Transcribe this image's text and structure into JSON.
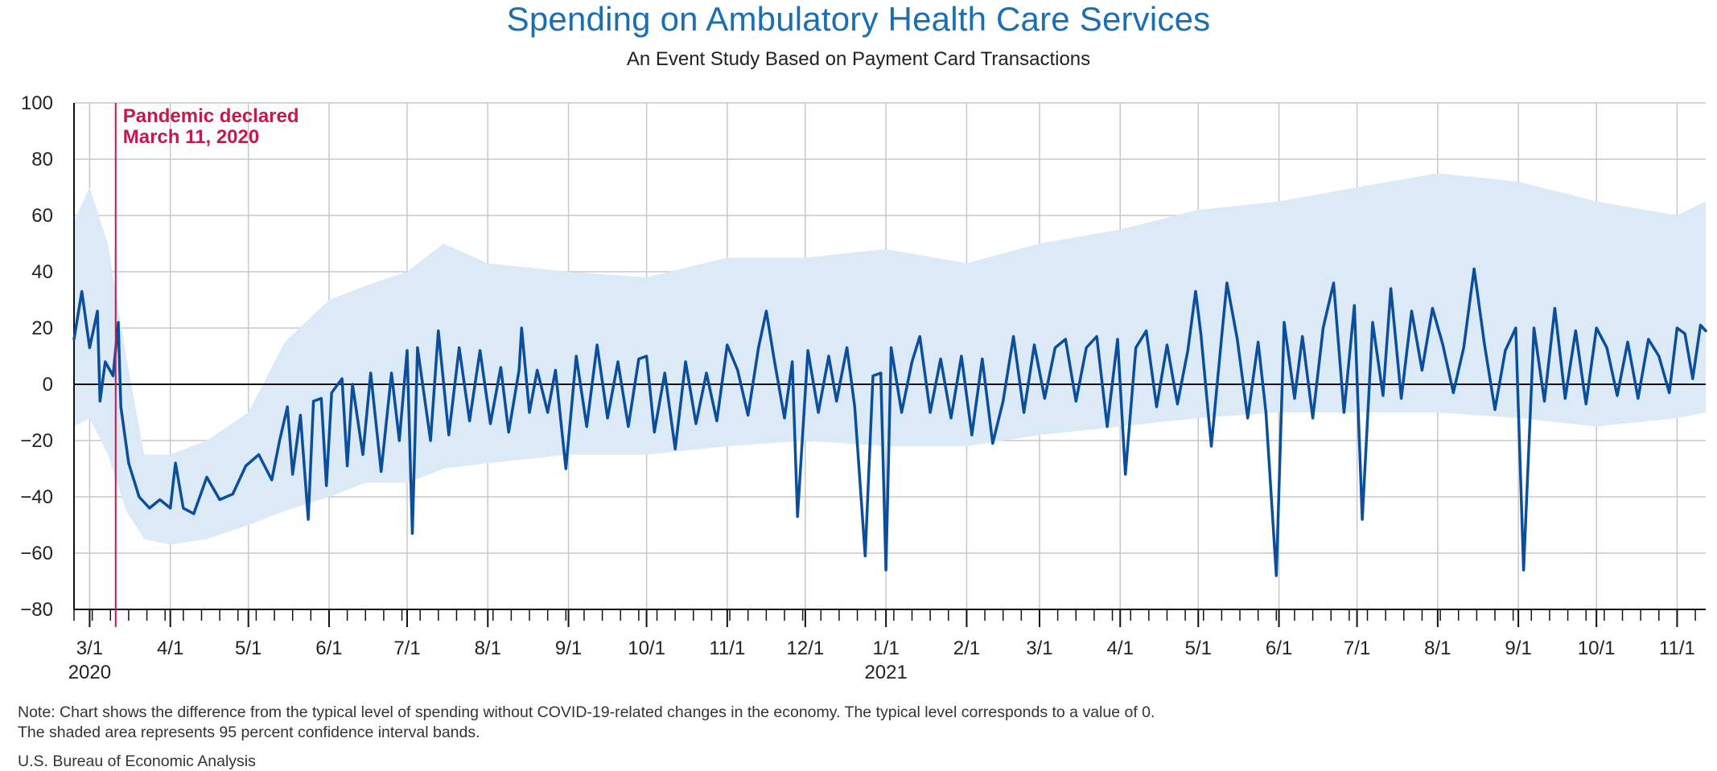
{
  "title": "Spending on Ambulatory Health Care Services",
  "subtitle": "An Event Study Based on Payment Card Transactions",
  "note_line1": "Note: Chart shows the difference from the typical level of spending without COVID-19-related changes in the economy. The typical level corresponds to a value of 0.",
  "note_line2": "The shaded area represents 95 percent confidence interval bands.",
  "source": "U.S. Bureau of Economic Analysis",
  "colors": {
    "title": "#1a6fb4",
    "line": "#0b4f9c",
    "band": "#dce9f7",
    "annotation": "#c8174a",
    "grid": "#c7c7c7"
  },
  "chart_data": {
    "type": "line",
    "title": "Spending on Ambulatory Health Care Services",
    "subtitle": "An Event Study Based on Payment Card Transactions",
    "xlabel": "",
    "ylabel": "",
    "ylim": [
      -80,
      100
    ],
    "yticks": [
      100,
      80,
      60,
      40,
      20,
      0,
      -20,
      -40,
      -60,
      -80
    ],
    "xlim": [
      "2020-02-24",
      "2021-11-12"
    ],
    "grid": true,
    "legend": "none",
    "xticks": [
      {
        "date": "2020-03-01",
        "label": "3/1",
        "year": "2020"
      },
      {
        "date": "2020-04-01",
        "label": "4/1"
      },
      {
        "date": "2020-05-01",
        "label": "5/1"
      },
      {
        "date": "2020-06-01",
        "label": "6/1"
      },
      {
        "date": "2020-07-01",
        "label": "7/1"
      },
      {
        "date": "2020-08-01",
        "label": "8/1"
      },
      {
        "date": "2020-09-01",
        "label": "9/1"
      },
      {
        "date": "2020-10-01",
        "label": "10/1"
      },
      {
        "date": "2020-11-01",
        "label": "11/1"
      },
      {
        "date": "2020-12-01",
        "label": "12/1"
      },
      {
        "date": "2021-01-01",
        "label": "1/1",
        "year": "2021"
      },
      {
        "date": "2021-02-01",
        "label": "2/1"
      },
      {
        "date": "2021-03-01",
        "label": "3/1"
      },
      {
        "date": "2021-04-01",
        "label": "4/1"
      },
      {
        "date": "2021-05-01",
        "label": "5/1"
      },
      {
        "date": "2021-06-01",
        "label": "6/1"
      },
      {
        "date": "2021-07-01",
        "label": "7/1"
      },
      {
        "date": "2021-08-01",
        "label": "8/1"
      },
      {
        "date": "2021-09-01",
        "label": "9/1"
      },
      {
        "date": "2021-10-01",
        "label": "10/1"
      },
      {
        "date": "2021-11-01",
        "label": "11/1"
      }
    ],
    "annotation": {
      "date": "2020-03-11",
      "line1": "Pandemic declared",
      "line2": "March 11, 2020"
    },
    "series": [
      {
        "type": "line",
        "points": [
          [
            "2020-02-24",
            16
          ],
          [
            "2020-02-27",
            33
          ],
          [
            "2020-03-01",
            13
          ],
          [
            "2020-03-04",
            26
          ],
          [
            "2020-03-05",
            -6
          ],
          [
            "2020-03-07",
            8
          ],
          [
            "2020-03-10",
            3
          ],
          [
            "2020-03-12",
            22
          ],
          [
            "2020-03-13",
            -8
          ],
          [
            "2020-03-16",
            -28
          ],
          [
            "2020-03-20",
            -40
          ],
          [
            "2020-03-24",
            -44
          ],
          [
            "2020-03-28",
            -41
          ],
          [
            "2020-04-01",
            -44
          ],
          [
            "2020-04-03",
            -28
          ],
          [
            "2020-04-06",
            -44
          ],
          [
            "2020-04-10",
            -46
          ],
          [
            "2020-04-15",
            -33
          ],
          [
            "2020-04-20",
            -41
          ],
          [
            "2020-04-25",
            -39
          ],
          [
            "2020-04-30",
            -29
          ],
          [
            "2020-05-05",
            -25
          ],
          [
            "2020-05-10",
            -34
          ],
          [
            "2020-05-13",
            -20
          ],
          [
            "2020-05-16",
            -8
          ],
          [
            "2020-05-18",
            -32
          ],
          [
            "2020-05-21",
            -11
          ],
          [
            "2020-05-24",
            -48
          ],
          [
            "2020-05-26",
            -6
          ],
          [
            "2020-05-29",
            -5
          ],
          [
            "2020-05-31",
            -36
          ],
          [
            "2020-06-02",
            -3
          ],
          [
            "2020-06-06",
            2
          ],
          [
            "2020-06-08",
            -29
          ],
          [
            "2020-06-10",
            0
          ],
          [
            "2020-06-14",
            -25
          ],
          [
            "2020-06-17",
            4
          ],
          [
            "2020-06-21",
            -31
          ],
          [
            "2020-06-25",
            4
          ],
          [
            "2020-06-28",
            -20
          ],
          [
            "2020-07-01",
            12
          ],
          [
            "2020-07-03",
            -53
          ],
          [
            "2020-07-05",
            13
          ],
          [
            "2020-07-10",
            -20
          ],
          [
            "2020-07-13",
            19
          ],
          [
            "2020-07-17",
            -18
          ],
          [
            "2020-07-21",
            13
          ],
          [
            "2020-07-25",
            -13
          ],
          [
            "2020-07-29",
            12
          ],
          [
            "2020-08-02",
            -14
          ],
          [
            "2020-08-06",
            6
          ],
          [
            "2020-08-09",
            -17
          ],
          [
            "2020-08-13",
            5
          ],
          [
            "2020-08-14",
            20
          ],
          [
            "2020-08-17",
            -10
          ],
          [
            "2020-08-20",
            5
          ],
          [
            "2020-08-24",
            -10
          ],
          [
            "2020-08-27",
            5
          ],
          [
            "2020-08-31",
            -30
          ],
          [
            "2020-09-04",
            10
          ],
          [
            "2020-09-08",
            -15
          ],
          [
            "2020-09-12",
            14
          ],
          [
            "2020-09-16",
            -12
          ],
          [
            "2020-09-20",
            8
          ],
          [
            "2020-09-24",
            -15
          ],
          [
            "2020-09-28",
            9
          ],
          [
            "2020-10-01",
            10
          ],
          [
            "2020-10-04",
            -17
          ],
          [
            "2020-10-08",
            4
          ],
          [
            "2020-10-12",
            -23
          ],
          [
            "2020-10-16",
            8
          ],
          [
            "2020-10-20",
            -14
          ],
          [
            "2020-10-24",
            4
          ],
          [
            "2020-10-28",
            -13
          ],
          [
            "2020-11-01",
            14
          ],
          [
            "2020-11-05",
            5
          ],
          [
            "2020-11-09",
            -11
          ],
          [
            "2020-11-13",
            13
          ],
          [
            "2020-11-16",
            26
          ],
          [
            "2020-11-19",
            9
          ],
          [
            "2020-11-23",
            -12
          ],
          [
            "2020-11-26",
            8
          ],
          [
            "2020-11-28",
            -47
          ],
          [
            "2020-12-02",
            12
          ],
          [
            "2020-12-06",
            -10
          ],
          [
            "2020-12-10",
            10
          ],
          [
            "2020-12-13",
            -6
          ],
          [
            "2020-12-17",
            13
          ],
          [
            "2020-12-20",
            -8
          ],
          [
            "2020-12-24",
            -61
          ],
          [
            "2020-12-27",
            3
          ],
          [
            "2020-12-30",
            4
          ],
          [
            "2021-01-01",
            -66
          ],
          [
            "2021-01-03",
            13
          ],
          [
            "2021-01-07",
            -10
          ],
          [
            "2021-01-11",
            8
          ],
          [
            "2021-01-14",
            17
          ],
          [
            "2021-01-18",
            -10
          ],
          [
            "2021-01-22",
            9
          ],
          [
            "2021-01-26",
            -12
          ],
          [
            "2021-01-30",
            10
          ],
          [
            "2021-02-03",
            -18
          ],
          [
            "2021-02-07",
            9
          ],
          [
            "2021-02-11",
            -21
          ],
          [
            "2021-02-15",
            -6
          ],
          [
            "2021-02-19",
            17
          ],
          [
            "2021-02-23",
            -10
          ],
          [
            "2021-02-27",
            14
          ],
          [
            "2021-03-03",
            -5
          ],
          [
            "2021-03-07",
            13
          ],
          [
            "2021-03-11",
            16
          ],
          [
            "2021-03-15",
            -6
          ],
          [
            "2021-03-19",
            13
          ],
          [
            "2021-03-23",
            17
          ],
          [
            "2021-03-27",
            -15
          ],
          [
            "2021-03-31",
            16
          ],
          [
            "2021-04-03",
            -32
          ],
          [
            "2021-04-07",
            13
          ],
          [
            "2021-04-11",
            19
          ],
          [
            "2021-04-15",
            -8
          ],
          [
            "2021-04-19",
            14
          ],
          [
            "2021-04-23",
            -7
          ],
          [
            "2021-04-27",
            12
          ],
          [
            "2021-04-30",
            33
          ],
          [
            "2021-05-02",
            18
          ],
          [
            "2021-05-06",
            -22
          ],
          [
            "2021-05-10",
            17
          ],
          [
            "2021-05-12",
            36
          ],
          [
            "2021-05-16",
            16
          ],
          [
            "2021-05-20",
            -12
          ],
          [
            "2021-05-24",
            15
          ],
          [
            "2021-05-27",
            -10
          ],
          [
            "2021-05-31",
            -68
          ],
          [
            "2021-06-03",
            22
          ],
          [
            "2021-06-07",
            -5
          ],
          [
            "2021-06-10",
            17
          ],
          [
            "2021-06-14",
            -12
          ],
          [
            "2021-06-18",
            20
          ],
          [
            "2021-06-22",
            36
          ],
          [
            "2021-06-26",
            -10
          ],
          [
            "2021-06-30",
            28
          ],
          [
            "2021-07-03",
            -48
          ],
          [
            "2021-07-07",
            22
          ],
          [
            "2021-07-11",
            -4
          ],
          [
            "2021-07-14",
            34
          ],
          [
            "2021-07-18",
            -5
          ],
          [
            "2021-07-22",
            26
          ],
          [
            "2021-07-26",
            5
          ],
          [
            "2021-07-30",
            27
          ],
          [
            "2021-08-03",
            14
          ],
          [
            "2021-08-07",
            -3
          ],
          [
            "2021-08-11",
            13
          ],
          [
            "2021-08-15",
            41
          ],
          [
            "2021-08-19",
            14
          ],
          [
            "2021-08-23",
            -9
          ],
          [
            "2021-08-27",
            12
          ],
          [
            "2021-08-31",
            20
          ],
          [
            "2021-09-03",
            -66
          ],
          [
            "2021-09-07",
            20
          ],
          [
            "2021-09-11",
            -6
          ],
          [
            "2021-09-15",
            27
          ],
          [
            "2021-09-19",
            -5
          ],
          [
            "2021-09-23",
            19
          ],
          [
            "2021-09-27",
            -7
          ],
          [
            "2021-10-01",
            20
          ],
          [
            "2021-10-05",
            13
          ],
          [
            "2021-10-09",
            -4
          ],
          [
            "2021-10-13",
            15
          ],
          [
            "2021-10-17",
            -5
          ],
          [
            "2021-10-21",
            16
          ],
          [
            "2021-10-25",
            10
          ],
          [
            "2021-10-29",
            -3
          ],
          [
            "2021-11-01",
            20
          ],
          [
            "2021-11-04",
            18
          ],
          [
            "2021-11-07",
            2
          ],
          [
            "2021-11-10",
            21
          ],
          [
            "2021-11-12",
            19
          ]
        ]
      },
      {
        "type": "band",
        "points": [
          [
            "2020-02-24",
            -15,
            58
          ],
          [
            "2020-03-01",
            -12,
            70
          ],
          [
            "2020-03-08",
            -25,
            50
          ],
          [
            "2020-03-15",
            -45,
            10
          ],
          [
            "2020-03-22",
            -55,
            -25
          ],
          [
            "2020-04-01",
            -57,
            -25
          ],
          [
            "2020-04-15",
            -55,
            -20
          ],
          [
            "2020-05-01",
            -50,
            -10
          ],
          [
            "2020-05-15",
            -45,
            15
          ],
          [
            "2020-06-01",
            -40,
            30
          ],
          [
            "2020-06-15",
            -35,
            35
          ],
          [
            "2020-07-01",
            -35,
            40
          ],
          [
            "2020-07-15",
            -30,
            50
          ],
          [
            "2020-08-01",
            -28,
            43
          ],
          [
            "2020-09-01",
            -25,
            40
          ],
          [
            "2020-10-01",
            -25,
            38
          ],
          [
            "2020-11-01",
            -22,
            45
          ],
          [
            "2020-12-01",
            -20,
            45
          ],
          [
            "2021-01-01",
            -22,
            48
          ],
          [
            "2021-02-01",
            -22,
            43
          ],
          [
            "2021-03-01",
            -18,
            50
          ],
          [
            "2021-04-01",
            -15,
            55
          ],
          [
            "2021-05-01",
            -12,
            62
          ],
          [
            "2021-06-01",
            -10,
            65
          ],
          [
            "2021-07-01",
            -10,
            70
          ],
          [
            "2021-08-01",
            -10,
            75
          ],
          [
            "2021-09-01",
            -12,
            72
          ],
          [
            "2021-10-01",
            -15,
            65
          ],
          [
            "2021-11-01",
            -12,
            60
          ],
          [
            "2021-11-12",
            -10,
            65
          ]
        ]
      }
    ]
  }
}
